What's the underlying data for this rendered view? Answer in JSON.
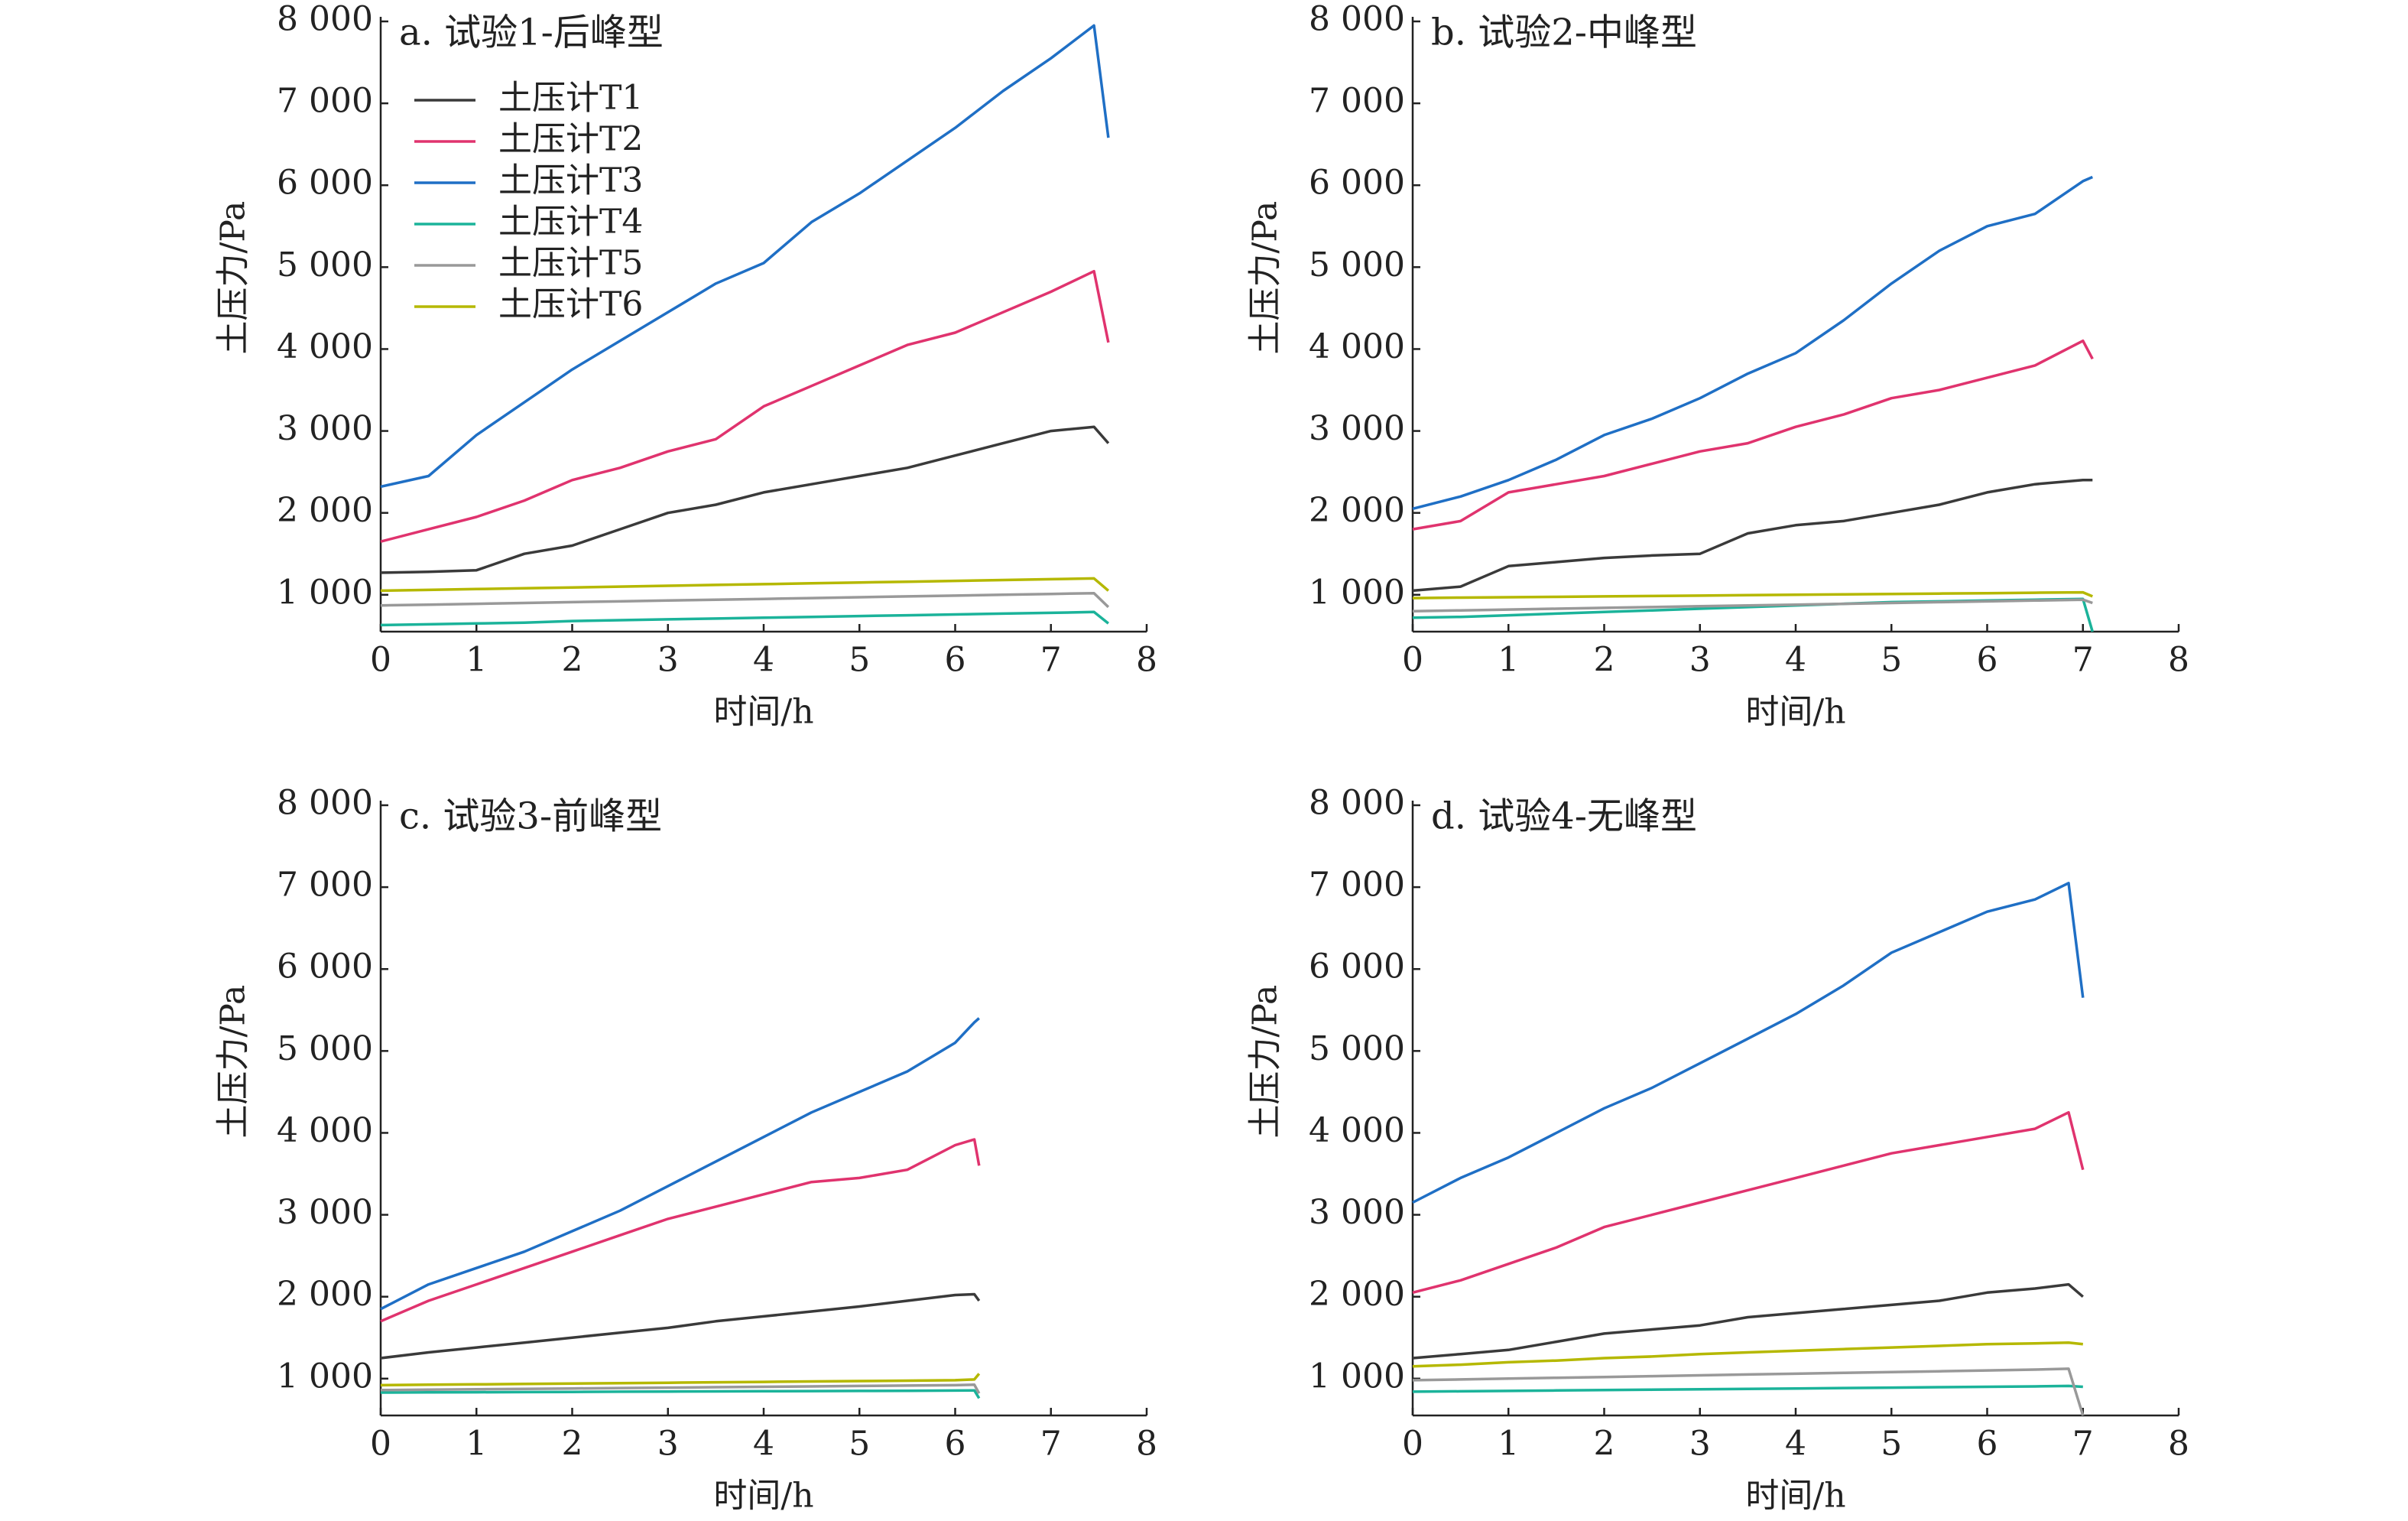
{
  "chart_data": [
    {
      "type": "line",
      "title": "a. 试验1-后峰型",
      "x_label": "时间/h",
      "y_label": "土压力/Pa",
      "legend": "upper left",
      "grid": false,
      "xlim": [
        0,
        8
      ],
      "xticks": [
        0,
        1,
        2,
        3,
        4,
        5,
        6,
        7,
        8
      ],
      "ylim": [
        550,
        8000
      ],
      "yticks": [
        {
          "value": 1000,
          "label": "1 000"
        },
        {
          "value": 2000,
          "label": "2 000"
        },
        {
          "value": 3000,
          "label": "3 000"
        },
        {
          "value": 4000,
          "label": "4 000"
        },
        {
          "value": 5000,
          "label": "5 000"
        },
        {
          "value": 6000,
          "label": "6 000"
        },
        {
          "value": 7000,
          "label": "7 000"
        },
        {
          "value": 8000,
          "label": "8 000"
        }
      ],
      "x": [
        0,
        0.5,
        1,
        1.5,
        2,
        2.5,
        3,
        3.5,
        4,
        4.5,
        5,
        5.5,
        6,
        6.5,
        7,
        7.45,
        7.6
      ],
      "series": [
        {
          "name": "土压计T1",
          "color": "#3a3a3a",
          "values": [
            1270,
            1280,
            1300,
            1500,
            1600,
            1800,
            2000,
            2100,
            2250,
            2350,
            2450,
            2550,
            2700,
            2850,
            3000,
            3050,
            2850
          ]
        },
        {
          "name": "土压计T2",
          "color": "#e0336e",
          "values": [
            1650,
            1800,
            1950,
            2150,
            2400,
            2550,
            2750,
            2900,
            3300,
            3550,
            3800,
            4050,
            4200,
            4450,
            4700,
            4950,
            4080
          ]
        },
        {
          "name": "土压计T3",
          "color": "#1f6fc5",
          "values": [
            2320,
            2450,
            2950,
            3350,
            3750,
            4100,
            4450,
            4800,
            5050,
            5550,
            5900,
            6300,
            6700,
            7150,
            7550,
            7950,
            6580
          ]
        },
        {
          "name": "土压计T4",
          "color": "#1bb39a",
          "values": [
            630,
            640,
            650,
            660,
            680,
            690,
            700,
            710,
            720,
            730,
            740,
            750,
            760,
            770,
            780,
            790,
            650
          ]
        },
        {
          "name": "土压计T5",
          "color": "#999999",
          "values": [
            870,
            880,
            890,
            900,
            910,
            920,
            930,
            940,
            950,
            960,
            970,
            980,
            990,
            1000,
            1010,
            1020,
            850
          ]
        },
        {
          "name": "土压计T6",
          "color": "#b5b800",
          "values": [
            1050,
            1060,
            1070,
            1080,
            1090,
            1100,
            1110,
            1120,
            1130,
            1140,
            1150,
            1160,
            1170,
            1180,
            1190,
            1200,
            1050
          ]
        }
      ]
    },
    {
      "type": "line",
      "title": "b. 试验2-中峰型",
      "x_label": "时间/h",
      "y_label": "土压力/Pa",
      "grid": false,
      "xlim": [
        0,
        8
      ],
      "xticks": [
        0,
        1,
        2,
        3,
        4,
        5,
        6,
        7,
        8
      ],
      "ylim": [
        550,
        8000
      ],
      "yticks": [
        {
          "value": 1000,
          "label": "1 000"
        },
        {
          "value": 2000,
          "label": "2 000"
        },
        {
          "value": 3000,
          "label": "3 000"
        },
        {
          "value": 4000,
          "label": "4 000"
        },
        {
          "value": 5000,
          "label": "5 000"
        },
        {
          "value": 6000,
          "label": "6 000"
        },
        {
          "value": 7000,
          "label": "7 000"
        },
        {
          "value": 8000,
          "label": "8 000"
        }
      ],
      "x": [
        0,
        0.5,
        1,
        1.5,
        2,
        2.5,
        3,
        3.5,
        4,
        4.5,
        5,
        5.5,
        6,
        6.5,
        7,
        7.1
      ],
      "series": [
        {
          "color": "#3a3a3a",
          "values": [
            1050,
            1100,
            1350,
            1400,
            1450,
            1480,
            1500,
            1750,
            1850,
            1900,
            2000,
            2100,
            2250,
            2350,
            2400,
            2400
          ]
        },
        {
          "color": "#e0336e",
          "values": [
            1800,
            1900,
            2250,
            2350,
            2450,
            2600,
            2750,
            2850,
            3050,
            3200,
            3400,
            3500,
            3650,
            3800,
            4100,
            3880
          ]
        },
        {
          "color": "#1f6fc5",
          "values": [
            2050,
            2200,
            2400,
            2650,
            2950,
            3150,
            3400,
            3700,
            3950,
            4350,
            4800,
            5200,
            5500,
            5650,
            6050,
            6100
          ]
        },
        {
          "color": "#1bb39a",
          "values": [
            720,
            730,
            750,
            770,
            790,
            810,
            830,
            850,
            870,
            890,
            910,
            920,
            930,
            940,
            950,
            550
          ]
        },
        {
          "color": "#999999",
          "values": [
            800,
            810,
            820,
            830,
            840,
            850,
            860,
            870,
            880,
            890,
            900,
            910,
            920,
            930,
            940,
            900
          ]
        },
        {
          "color": "#b5b800",
          "values": [
            960,
            965,
            970,
            975,
            980,
            985,
            990,
            995,
            1000,
            1005,
            1010,
            1015,
            1020,
            1025,
            1030,
            980
          ]
        }
      ]
    },
    {
      "type": "line",
      "title": "c. 试验3-前峰型",
      "x_label": "时间/h",
      "y_label": "土压力/Pa",
      "grid": false,
      "xlim": [
        0,
        8
      ],
      "xticks": [
        0,
        1,
        2,
        3,
        4,
        5,
        6,
        7,
        8
      ],
      "ylim": [
        550,
        8000
      ],
      "yticks": [
        {
          "value": 1000,
          "label": "1 000"
        },
        {
          "value": 2000,
          "label": "2 000"
        },
        {
          "value": 3000,
          "label": "3 000"
        },
        {
          "value": 4000,
          "label": "4 000"
        },
        {
          "value": 5000,
          "label": "5 000"
        },
        {
          "value": 6000,
          "label": "6 000"
        },
        {
          "value": 7000,
          "label": "7 000"
        },
        {
          "value": 8000,
          "label": "8 000"
        }
      ],
      "x": [
        0,
        0.5,
        1,
        1.5,
        2,
        2.5,
        3,
        3.5,
        4,
        4.5,
        5,
        5.5,
        6,
        6.2,
        6.25
      ],
      "series": [
        {
          "color": "#3a3a3a",
          "values": [
            1250,
            1320,
            1380,
            1440,
            1500,
            1560,
            1620,
            1700,
            1760,
            1820,
            1880,
            1950,
            2020,
            2030,
            1950
          ]
        },
        {
          "color": "#e0336e",
          "values": [
            1700,
            1950,
            2150,
            2350,
            2550,
            2750,
            2950,
            3100,
            3250,
            3400,
            3450,
            3550,
            3850,
            3920,
            3600
          ]
        },
        {
          "color": "#1f6fc5",
          "values": [
            1850,
            2150,
            2350,
            2550,
            2800,
            3050,
            3350,
            3650,
            3950,
            4250,
            4500,
            4750,
            5100,
            5350,
            5400
          ]
        },
        {
          "color": "#1bb39a",
          "values": [
            830,
            832,
            834,
            836,
            838,
            840,
            842,
            844,
            846,
            848,
            850,
            852,
            854,
            856,
            760
          ]
        },
        {
          "color": "#999999",
          "values": [
            860,
            865,
            870,
            875,
            880,
            885,
            890,
            895,
            900,
            905,
            910,
            915,
            920,
            925,
            820
          ]
        },
        {
          "color": "#b5b800",
          "values": [
            920,
            925,
            930,
            935,
            940,
            945,
            950,
            955,
            960,
            965,
            970,
            975,
            980,
            990,
            1060
          ]
        }
      ]
    },
    {
      "type": "line",
      "title": "d. 试验4-无峰型",
      "x_label": "时间/h",
      "y_label": "土压力/Pa",
      "grid": false,
      "xlim": [
        0,
        8
      ],
      "xticks": [
        0,
        1,
        2,
        3,
        4,
        5,
        6,
        7,
        8
      ],
      "ylim": [
        550,
        8000
      ],
      "yticks": [
        {
          "value": 1000,
          "label": "1 000"
        },
        {
          "value": 2000,
          "label": "2 000"
        },
        {
          "value": 3000,
          "label": "3 000"
        },
        {
          "value": 4000,
          "label": "4 000"
        },
        {
          "value": 5000,
          "label": "5 000"
        },
        {
          "value": 6000,
          "label": "6 000"
        },
        {
          "value": 7000,
          "label": "7 000"
        },
        {
          "value": 8000,
          "label": "8 000"
        }
      ],
      "x": [
        0,
        0.5,
        1,
        1.5,
        2,
        2.5,
        3,
        3.5,
        4,
        4.5,
        5,
        5.5,
        6,
        6.5,
        6.85,
        7
      ],
      "series": [
        {
          "color": "#3a3a3a",
          "values": [
            1250,
            1300,
            1350,
            1450,
            1550,
            1600,
            1650,
            1750,
            1800,
            1850,
            1900,
            1950,
            2050,
            2100,
            2150,
            2000
          ]
        },
        {
          "color": "#e0336e",
          "values": [
            2050,
            2200,
            2400,
            2600,
            2850,
            3000,
            3150,
            3300,
            3450,
            3600,
            3750,
            3850,
            3950,
            4050,
            4250,
            3550
          ]
        },
        {
          "color": "#1f6fc5",
          "values": [
            3150,
            3450,
            3700,
            4000,
            4300,
            4550,
            4850,
            5150,
            5450,
            5800,
            6200,
            6450,
            6700,
            6850,
            7050,
            5650
          ]
        },
        {
          "color": "#1bb39a",
          "values": [
            840,
            845,
            850,
            855,
            860,
            865,
            870,
            875,
            880,
            885,
            890,
            895,
            900,
            905,
            910,
            900
          ]
        },
        {
          "color": "#999999",
          "values": [
            980,
            990,
            1000,
            1010,
            1020,
            1030,
            1040,
            1050,
            1060,
            1070,
            1080,
            1090,
            1100,
            1110,
            1120,
            550
          ]
        },
        {
          "color": "#b5b800",
          "values": [
            1150,
            1170,
            1200,
            1220,
            1250,
            1270,
            1300,
            1320,
            1340,
            1360,
            1380,
            1400,
            1420,
            1430,
            1440,
            1420
          ]
        }
      ]
    }
  ]
}
